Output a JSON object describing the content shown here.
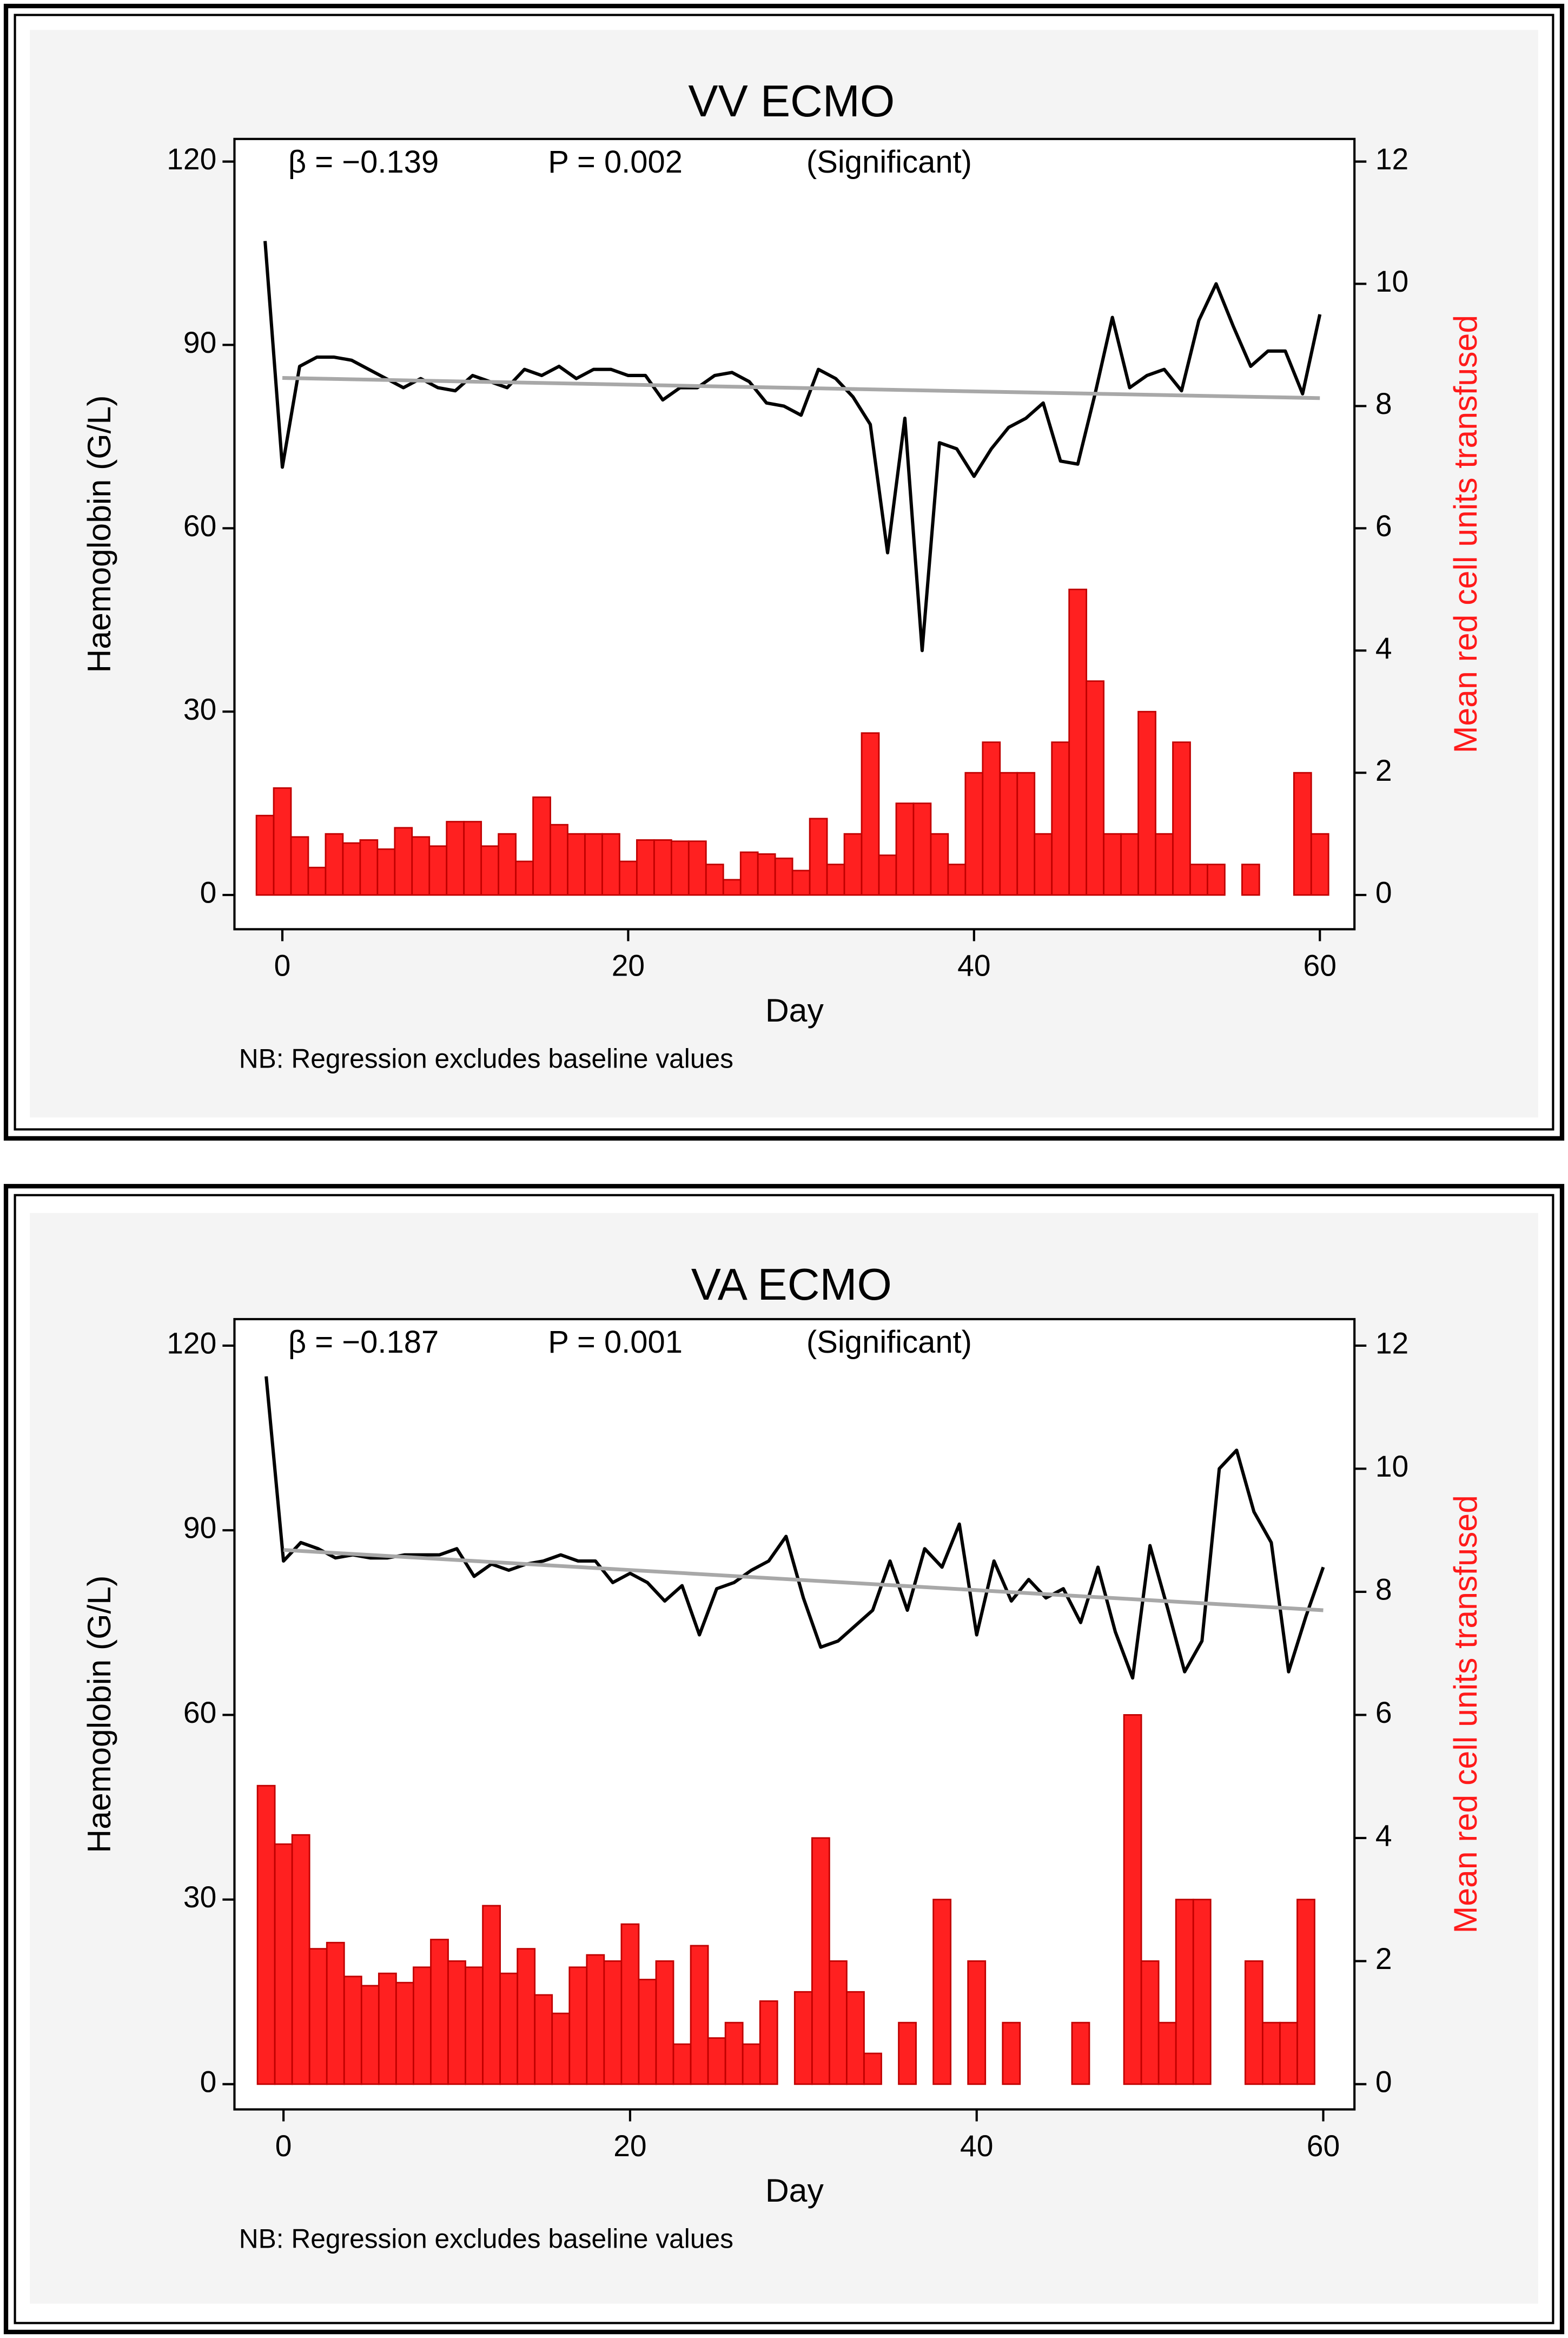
{
  "chart_data": [
    {
      "type": "combo",
      "title": "VV ECMO",
      "xlabel": "Day",
      "ylabel": "Haemoglobin (G/L)",
      "y2label": "Mean red cell units transfused",
      "stats": [
        "β = −0.139",
        "P = 0.002",
        "(Significant)"
      ],
      "note": "NB: Regression excludes baseline values",
      "xlim": [
        -2.77,
        62
      ],
      "xticks": [
        0,
        20,
        40,
        60
      ],
      "ylim": [
        -5.6,
        123.7
      ],
      "yticks": [
        0,
        30,
        60,
        90,
        120
      ],
      "y2lim": [
        -0.56,
        12.37
      ],
      "y2ticks": [
        0,
        2,
        4,
        6,
        8,
        10,
        12
      ],
      "x": [
        -1,
        0,
        1,
        2,
        3,
        4,
        5,
        6,
        7,
        8,
        9,
        10,
        11,
        12,
        13,
        14,
        15,
        16,
        17,
        18,
        19,
        20,
        21,
        22,
        23,
        24,
        25,
        26,
        27,
        28,
        29,
        30,
        31,
        32,
        33,
        34,
        35,
        36,
        37,
        38,
        39,
        40,
        41,
        42,
        43,
        44,
        45,
        46,
        47,
        48,
        49,
        50,
        51,
        52,
        53,
        54,
        55,
        56,
        57,
        58,
        59,
        60
      ],
      "series": [
        {
          "kind": "bar",
          "axis": "y2",
          "color": "#ff2020",
          "values": [
            1.3,
            1.75,
            0.95,
            0.45,
            1.0,
            0.85,
            0.9,
            0.75,
            1.1,
            0.95,
            0.8,
            1.2,
            1.2,
            0.8,
            1.0,
            0.55,
            1.6,
            1.15,
            1.0,
            1.0,
            1.0,
            0.55,
            0.9,
            0.9,
            0.88,
            0.88,
            0.5,
            0.25,
            0.7,
            0.67,
            0.6,
            0.4,
            1.25,
            0.5,
            1.0,
            2.65,
            0.65,
            1.5,
            1.5,
            1.0,
            0.5,
            2.0,
            2.5,
            2.0,
            2.0,
            1.0,
            2.5,
            5.0,
            3.5,
            1.0,
            1.0,
            3.0,
            1.0,
            2.5,
            0.5,
            0.5,
            null,
            0.5,
            null,
            null,
            2.0,
            1.0
          ]
        },
        {
          "kind": "line",
          "color": "#000000",
          "values": [
            107,
            70,
            86.5,
            88,
            88,
            87.5,
            86,
            84.5,
            83,
            84.5,
            83,
            82.5,
            85,
            84,
            83,
            86,
            85,
            86.5,
            84.5,
            86,
            86,
            85,
            85,
            81,
            83,
            83,
            85,
            85.5,
            84,
            80.5,
            80,
            78.5,
            86,
            84.5,
            81.5,
            77,
            56,
            78,
            40,
            74,
            73,
            68.5,
            73,
            76.5,
            78,
            80.5,
            71,
            70.5,
            82,
            94.5,
            83,
            85,
            86,
            82.5,
            94,
            100,
            93,
            86.5,
            89,
            89,
            82,
            95
          ]
        },
        {
          "kind": "line",
          "color": "#a8a8a8",
          "x": [
            0,
            60
          ],
          "values": [
            84.6,
            81.3
          ]
        }
      ]
    },
    {
      "type": "combo",
      "title": "VA ECMO",
      "xlabel": "Day",
      "ylabel": "Haemoglobin (G/L)",
      "y2label": "Mean red cell units transfused",
      "stats": [
        "β = −0.187",
        "P = 0.001",
        "(Significant)"
      ],
      "note": "NB: Regression excludes baseline values",
      "xlim": [
        -2.83,
        61.8
      ],
      "xticks": [
        0,
        20,
        40,
        60
      ],
      "ylim": [
        -4.1,
        124.3
      ],
      "yticks": [
        0,
        30,
        60,
        90,
        120
      ],
      "y2lim": [
        -0.41,
        12.43
      ],
      "y2ticks": [
        0,
        2,
        4,
        6,
        8,
        10,
        12
      ],
      "x": [
        -1,
        0,
        1,
        2,
        3,
        4,
        5,
        6,
        7,
        8,
        9,
        10,
        11,
        12,
        13,
        14,
        15,
        16,
        17,
        18,
        19,
        20,
        21,
        22,
        23,
        24,
        25,
        26,
        27,
        28,
        29,
        30,
        31,
        32,
        33,
        34,
        35,
        36,
        37,
        38,
        39,
        40,
        41,
        42,
        43,
        44,
        45,
        46,
        47,
        48,
        49,
        50,
        51,
        52,
        53,
        54,
        55,
        56,
        57,
        58,
        59,
        60
      ],
      "series": [
        {
          "kind": "bar",
          "axis": "y2",
          "color": "#ff2020",
          "values": [
            4.85,
            3.9,
            4.05,
            2.2,
            2.3,
            1.75,
            1.6,
            1.8,
            1.65,
            1.9,
            2.35,
            2.0,
            1.9,
            2.9,
            1.8,
            2.2,
            1.45,
            1.15,
            1.9,
            2.1,
            2.0,
            2.6,
            1.7,
            2.0,
            0.65,
            2.25,
            0.75,
            1.0,
            0.65,
            1.35,
            null,
            1.5,
            4.0,
            2.0,
            1.5,
            0.5,
            null,
            1.0,
            null,
            3.0,
            null,
            2.0,
            null,
            1.0,
            null,
            null,
            null,
            1.0,
            null,
            null,
            6.0,
            2.0,
            1.0,
            3.0,
            3.0,
            null,
            null,
            2.0,
            1.0,
            1.0,
            3.0,
            null
          ]
        },
        {
          "kind": "line",
          "color": "#000000",
          "values": [
            115,
            85,
            88,
            87,
            85.5,
            86,
            85.5,
            85.5,
            86,
            86,
            86,
            87,
            82.5,
            84.5,
            83.5,
            84.5,
            85,
            86,
            85,
            85,
            81.5,
            83,
            81.5,
            78.5,
            81,
            73,
            80.5,
            81.5,
            83.5,
            85,
            89,
            79,
            71,
            72,
            74.5,
            77,
            85,
            77,
            87,
            84,
            91,
            73,
            85,
            78.5,
            82,
            79,
            80.5,
            75,
            84,
            73.5,
            66,
            87.5,
            77.5,
            67,
            72,
            100,
            103,
            93,
            88,
            67,
            76,
            84
          ]
        },
        {
          "kind": "line",
          "color": "#a8a8a8",
          "x": [
            0,
            60
          ],
          "values": [
            86.8,
            77
          ]
        }
      ]
    }
  ]
}
